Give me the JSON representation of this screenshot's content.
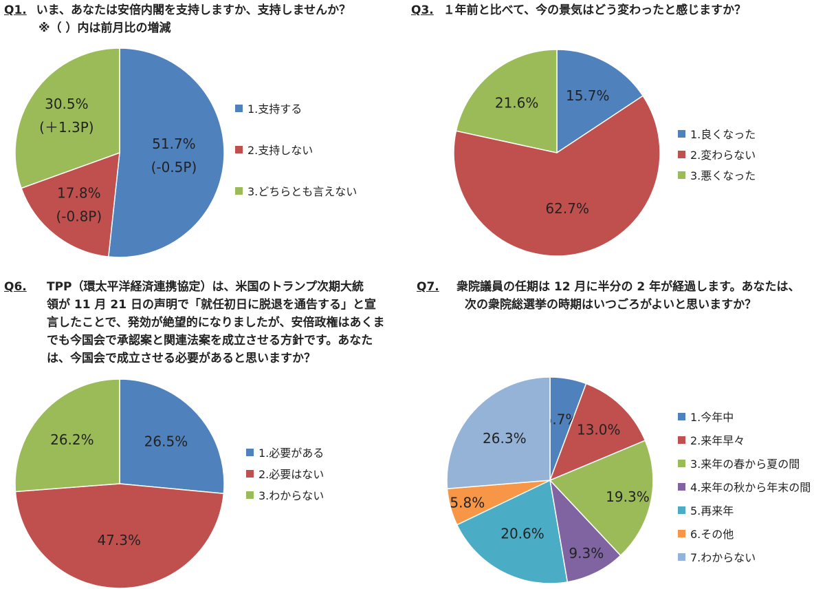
{
  "questions": [
    {
      "num": "Q1.",
      "lines": [
        "いま、あなたは安倍内閣を支持しますか、支持しませんか？",
        "※（ ）内は前月比の増減"
      ]
    },
    {
      "num": "Q3.",
      "lines": [
        "１年前と比べて、今の景気はどう変わったと感じますか？"
      ]
    },
    {
      "num": "Q6.",
      "lines": [
        "TPP（環太平洋経済連携協定）は、米国のトランプ次期大統",
        "領が 11 月 21 日の声明で「就任初日に脱退を通告する」と宣",
        "言したことで、発効が絶望的になりましたが、安倍政権はあくま",
        "でも今国会で承認案と関連法案を成立させる方針です。あなた",
        "は、今国会で成立させる必要があると思いますか？"
      ]
    },
    {
      "num": "Q7.",
      "lines": [
        "衆院議員の任期は 12 月に半分の 2 年が経過します。あなたは、",
        "次の衆院総選挙の時期はいつごろがよいと思いますか？"
      ]
    }
  ],
  "chart_data": [
    {
      "type": "pie",
      "categories": [
        "1.支持する",
        "2.支持しない",
        "3.どちらとも言えない"
      ],
      "values": [
        51.7,
        17.8,
        30.5
      ],
      "labels": [
        "51.7%",
        "17.8%",
        "30.5%"
      ],
      "changes": [
        "(-0.5P)",
        "(-0.8P)",
        "(＋1.3P)"
      ],
      "colors": [
        "#4f81bd",
        "#c0504d",
        "#9bbb59"
      ],
      "legend_position": "right"
    },
    {
      "type": "pie",
      "categories": [
        "1.良くなった",
        "2.変わらない",
        "3.悪くなった"
      ],
      "values": [
        15.7,
        62.7,
        21.6
      ],
      "labels": [
        "15.7%",
        "62.7%",
        "21.6%"
      ],
      "colors": [
        "#4f81bd",
        "#c0504d",
        "#9bbb59"
      ],
      "legend_position": "right"
    },
    {
      "type": "pie",
      "categories": [
        "1.必要がある",
        "2.必要はない",
        "3.わからない"
      ],
      "values": [
        26.5,
        47.3,
        26.2
      ],
      "labels": [
        "26.5%",
        "47.3%",
        "26.2%"
      ],
      "colors": [
        "#4f81bd",
        "#c0504d",
        "#9bbb59"
      ],
      "legend_position": "right"
    },
    {
      "type": "pie",
      "categories": [
        "1.今年中",
        "2.来年早々",
        "3.来年の春から夏の間",
        "4.来年の秋から年末の間",
        "5.再来年",
        "6.その他",
        "7.わからない"
      ],
      "values": [
        5.7,
        13.0,
        19.3,
        9.3,
        20.6,
        5.8,
        26.3
      ],
      "labels": [
        "5.7%",
        "13.0%",
        "19.3%",
        "9.3%",
        "20.6%",
        "5.8%",
        "26.3%"
      ],
      "colors": [
        "#4f81bd",
        "#c0504d",
        "#9bbb59",
        "#8064a2",
        "#4bacc6",
        "#f79646",
        "#95b3d7"
      ],
      "legend_position": "right"
    }
  ]
}
